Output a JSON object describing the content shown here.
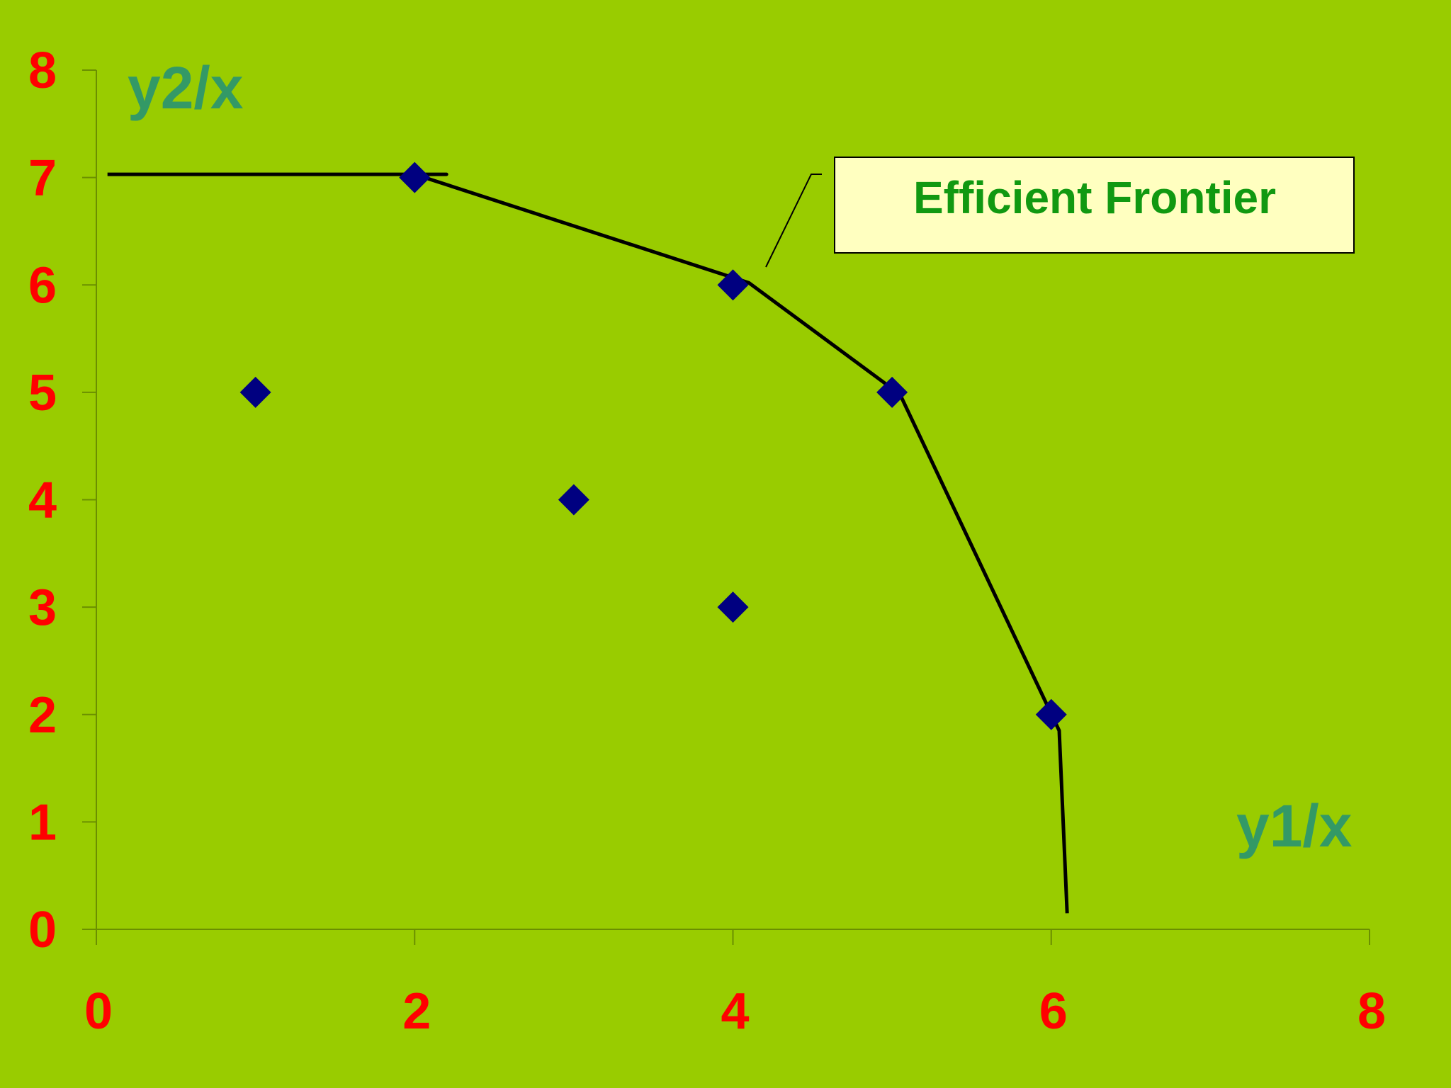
{
  "chart_data": {
    "type": "scatter",
    "xlabel": "y1/x",
    "ylabel": "y2/x",
    "xlim": [
      0,
      8
    ],
    "ylim": [
      0,
      8
    ],
    "x_ticks": [
      0,
      2,
      4,
      6,
      8
    ],
    "y_ticks": [
      0,
      1,
      2,
      3,
      4,
      5,
      6,
      7,
      8
    ],
    "points": [
      {
        "x": 1,
        "y": 5
      },
      {
        "x": 2,
        "y": 7
      },
      {
        "x": 3,
        "y": 4
      },
      {
        "x": 4,
        "y": 6
      },
      {
        "x": 4,
        "y": 3
      },
      {
        "x": 5,
        "y": 5
      },
      {
        "x": 6,
        "y": 2
      }
    ],
    "frontier": {
      "label": "Efficient Frontier",
      "points": [
        {
          "x": 0.07,
          "y": 7.03
        },
        {
          "x": 2.2,
          "y": 7.03
        },
        {
          "x": 2,
          "y": 7.03
        },
        {
          "x": 4.1,
          "y": 6.02
        },
        {
          "x": 5.05,
          "y": 4.98
        },
        {
          "x": 6.05,
          "y": 1.85
        },
        {
          "x": 6.1,
          "y": 0.15
        }
      ]
    },
    "grid": false,
    "colors": {
      "background": "#99cc00",
      "tick_labels": "#ff0000",
      "axis_titles": "#339966",
      "markers": "#000080",
      "frontier_line": "#000000",
      "callout_fill": "#ffffc0",
      "callout_text": "#119911"
    }
  }
}
